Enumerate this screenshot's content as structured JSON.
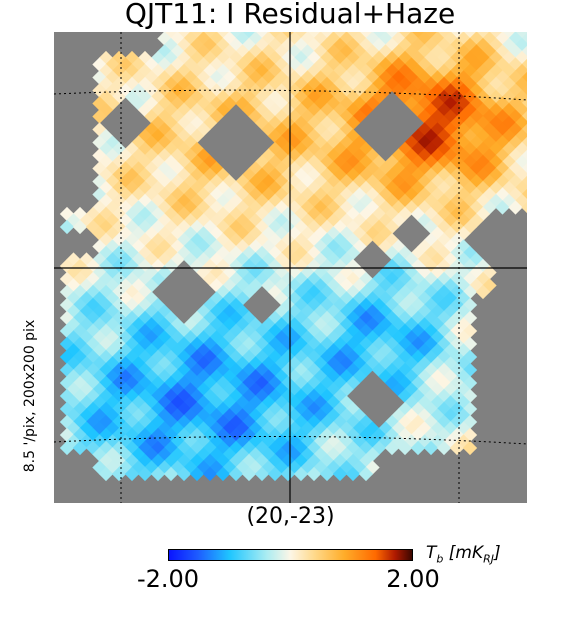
{
  "chart_data": {
    "type": "heatmap",
    "title": "QJT11: I Residual+Haze",
    "side_label": "8.5 '/pix,   200x200 pix",
    "center_label": "(20,-23)",
    "colorbar": {
      "min_label": "-2.00",
      "max_label": "2.00",
      "unit_symbol": "T",
      "unit_symbol_sub": "b",
      "unit_bracket_open": " [",
      "unit_body": "mK",
      "unit_body_sub": "RJ",
      "unit_bracket_close": "]",
      "vmin": -2.0,
      "vmax": 2.0,
      "colormap": [
        "#0a14ff",
        "#1fc6ff",
        "#fdf6e6",
        "#ffad2a",
        "#ff6a00",
        "#3b0700"
      ]
    },
    "grid": "on",
    "background_color": "#808080"
  }
}
